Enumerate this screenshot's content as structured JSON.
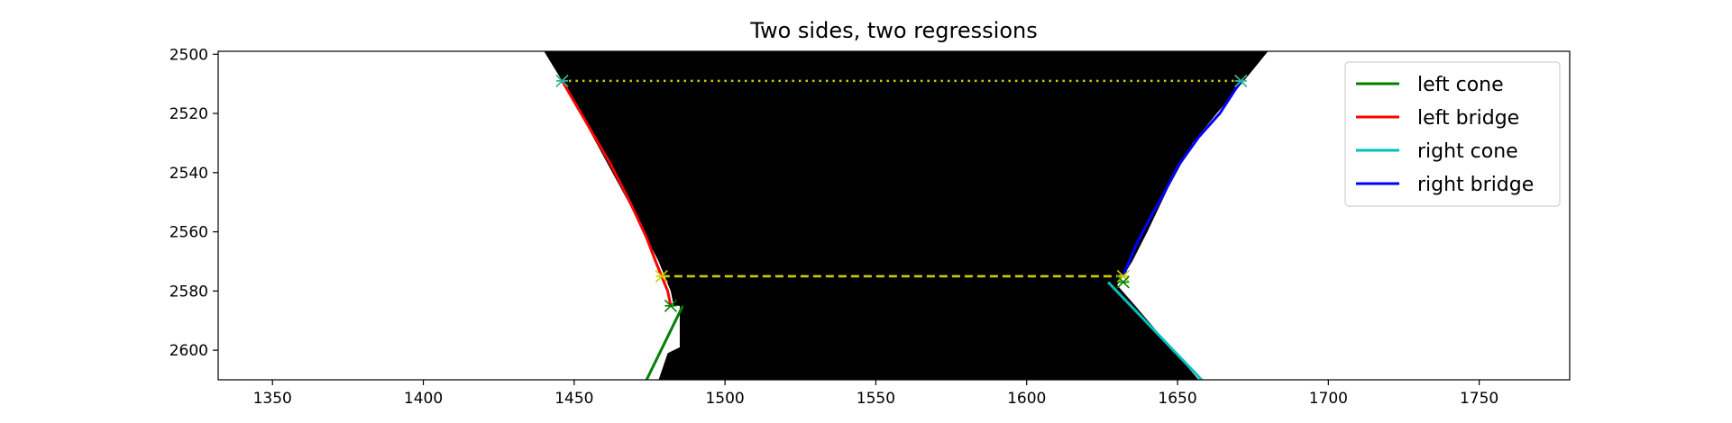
{
  "chart_data": {
    "type": "line",
    "title": "Two sides, two regressions",
    "xlabel": "",
    "ylabel": "",
    "xlim": [
      1332,
      1780
    ],
    "ylim": [
      2610,
      2499
    ],
    "y_inverted": true,
    "grid": false,
    "x_ticks": [
      1350,
      1400,
      1450,
      1500,
      1550,
      1600,
      1650,
      1700,
      1750
    ],
    "y_ticks": [
      2500,
      2520,
      2540,
      2560,
      2580,
      2600
    ],
    "background_region": {
      "color": "#000000",
      "left_boundary": [
        [
          1440,
          2499
        ],
        [
          1446,
          2509
        ],
        [
          1452,
          2520
        ],
        [
          1460,
          2535
        ],
        [
          1468,
          2550
        ],
        [
          1474,
          2562
        ],
        [
          1478,
          2570
        ],
        [
          1480,
          2575
        ],
        [
          1482,
          2580
        ],
        [
          1483,
          2585
        ],
        [
          1485,
          2585
        ],
        [
          1485,
          2599
        ],
        [
          1481,
          2601
        ],
        [
          1478,
          2610
        ]
      ],
      "right_boundary": [
        [
          1680,
          2499
        ],
        [
          1672,
          2509
        ],
        [
          1663,
          2520
        ],
        [
          1655,
          2530
        ],
        [
          1647,
          2545
        ],
        [
          1640,
          2560
        ],
        [
          1635,
          2570
        ],
        [
          1632,
          2575
        ],
        [
          1630,
          2578
        ],
        [
          1636,
          2585
        ],
        [
          1646,
          2597
        ],
        [
          1657,
          2610
        ]
      ]
    },
    "series": [
      {
        "name": "left cone",
        "color": "#008000",
        "style": "solid",
        "x": [
          1474,
          1486
        ],
        "y": [
          2610,
          2585
        ]
      },
      {
        "name": "left bridge",
        "color": "#ff0000",
        "style": "solid",
        "x": [
          1446,
          1454,
          1462,
          1469,
          1474,
          1477,
          1479,
          1481,
          1482
        ],
        "y": [
          2509,
          2523,
          2537,
          2551,
          2562,
          2570,
          2575,
          2580,
          2585
        ]
      },
      {
        "name": "right cone",
        "color": "#00bfbf",
        "style": "solid",
        "x": [
          1627,
          1658
        ],
        "y": [
          2577,
          2610
        ]
      },
      {
        "name": "right bridge",
        "color": "#0000ff",
        "style": "solid",
        "x": [
          1671,
          1664,
          1657,
          1650,
          1645,
          1640,
          1636,
          1634,
          1632
        ],
        "y": [
          2509,
          2520,
          2528,
          2538,
          2548,
          2557,
          2565,
          2570,
          2575
        ]
      }
    ],
    "reference_lines": [
      {
        "color": "#cccc00",
        "style": "dotted",
        "x": [
          1446,
          1671
        ],
        "y": [
          2509,
          2509
        ]
      },
      {
        "color": "#cccc00",
        "style": "dashed",
        "x": [
          1479,
          1632
        ],
        "y": [
          2575,
          2575
        ]
      }
    ],
    "markers": [
      {
        "color": "#cccc00",
        "x": 1446,
        "y": 2509
      },
      {
        "color": "#cccc00",
        "x": 1671,
        "y": 2509
      },
      {
        "color": "#cccc00",
        "x": 1479,
        "y": 2575
      },
      {
        "color": "#cccc00",
        "x": 1632,
        "y": 2575
      },
      {
        "color": "#20b2aa",
        "x": 1446,
        "y": 2509
      },
      {
        "color": "#20b2aa",
        "x": 1671,
        "y": 2509
      },
      {
        "color": "#008000",
        "x": 1482,
        "y": 2585
      },
      {
        "color": "#008000",
        "x": 1632,
        "y": 2577
      }
    ],
    "legend": {
      "placement": "top-right",
      "entries": [
        "left cone",
        "left bridge",
        "right cone",
        "right bridge"
      ]
    }
  }
}
